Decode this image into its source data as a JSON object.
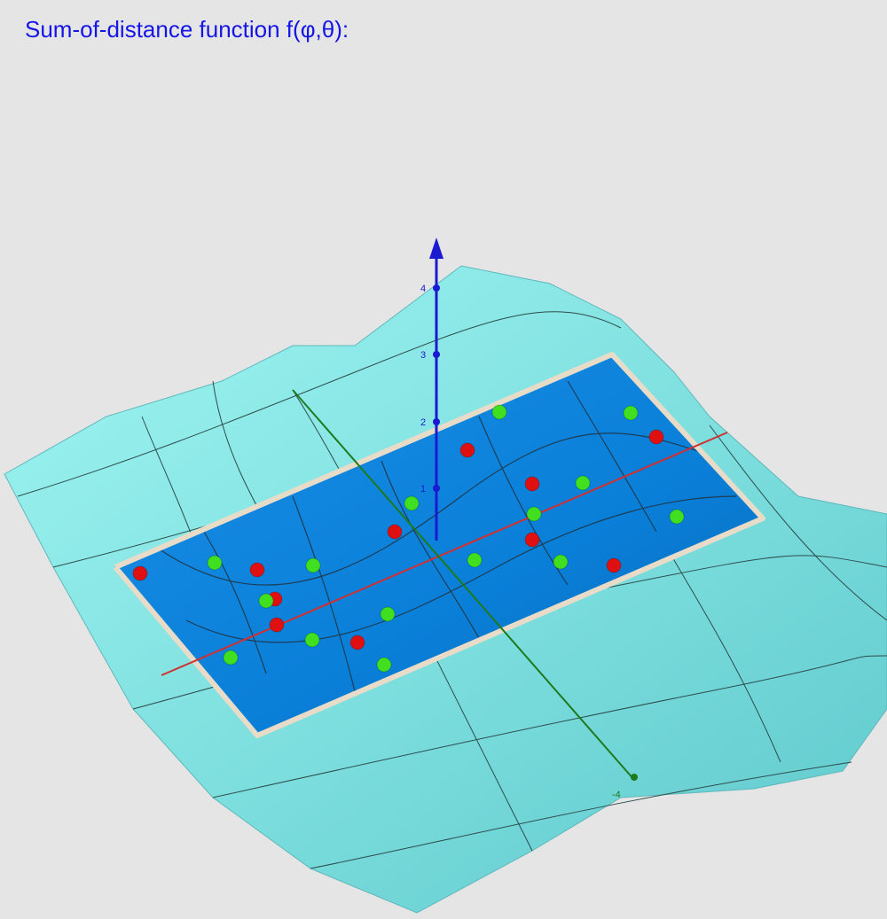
{
  "title": "Sum-of-distance function f(φ,θ):",
  "z_axis": {
    "ticks": [
      "1",
      "2",
      "3",
      "4"
    ]
  },
  "y_axis": {
    "ticks": [
      "-4"
    ]
  }
}
